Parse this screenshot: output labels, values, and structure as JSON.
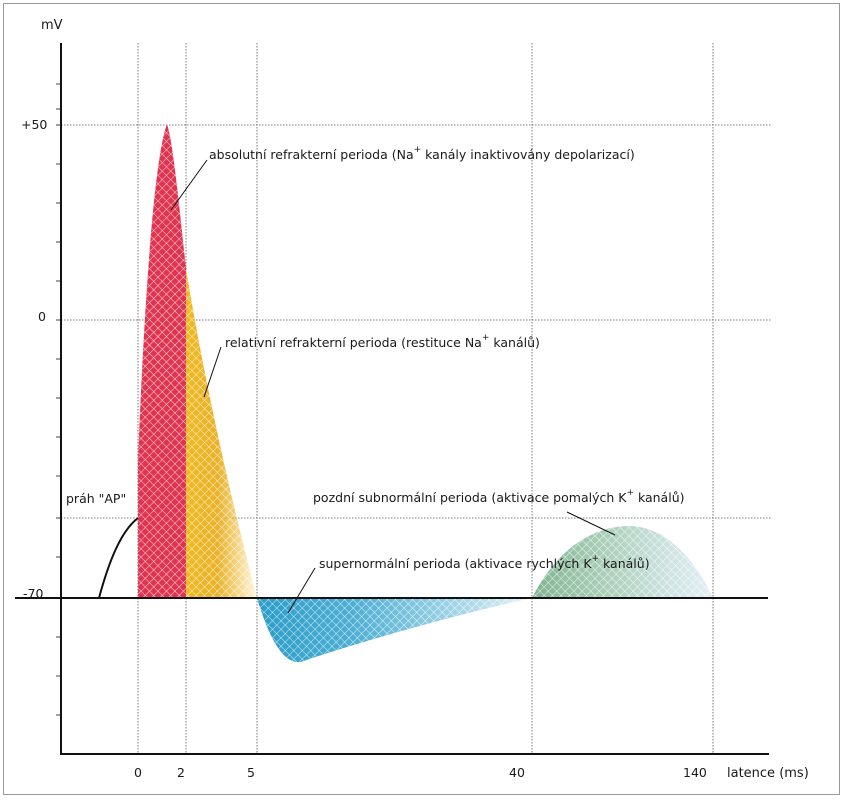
{
  "axes": {
    "y_unit": "mV",
    "x_unit": "latence (ms)",
    "y_ticks": [
      "+50",
      "0",
      "-70"
    ],
    "x_ticks": [
      "0",
      "2",
      "5",
      "40",
      "140"
    ]
  },
  "annotations": {
    "threshold": "práh \"AP\"",
    "absolute": {
      "pre": "absolutní refrakterní perioda (Na",
      "sup": "+",
      "post": " kanály inaktivovány depolarizací)"
    },
    "relative": {
      "pre": "relativní refrakterní perioda (restituce Na",
      "sup": "+",
      "post": " kanálů)"
    },
    "late_subnormal": {
      "pre": "pozdní subnormální perioda (aktivace pomalých K",
      "sup": "+",
      "post": " kanálů)"
    },
    "supernormal": {
      "pre": "supernormální perioda (aktivace rychlých K",
      "sup": "+",
      "post": " kanálů)"
    }
  },
  "colors": {
    "absolute": "#e0334f",
    "relative": "#f0b820",
    "supernormal": "#2a9cc8",
    "late_subnormal": "#8fbf9e",
    "axis": "#111111",
    "grid": "#555555"
  }
}
